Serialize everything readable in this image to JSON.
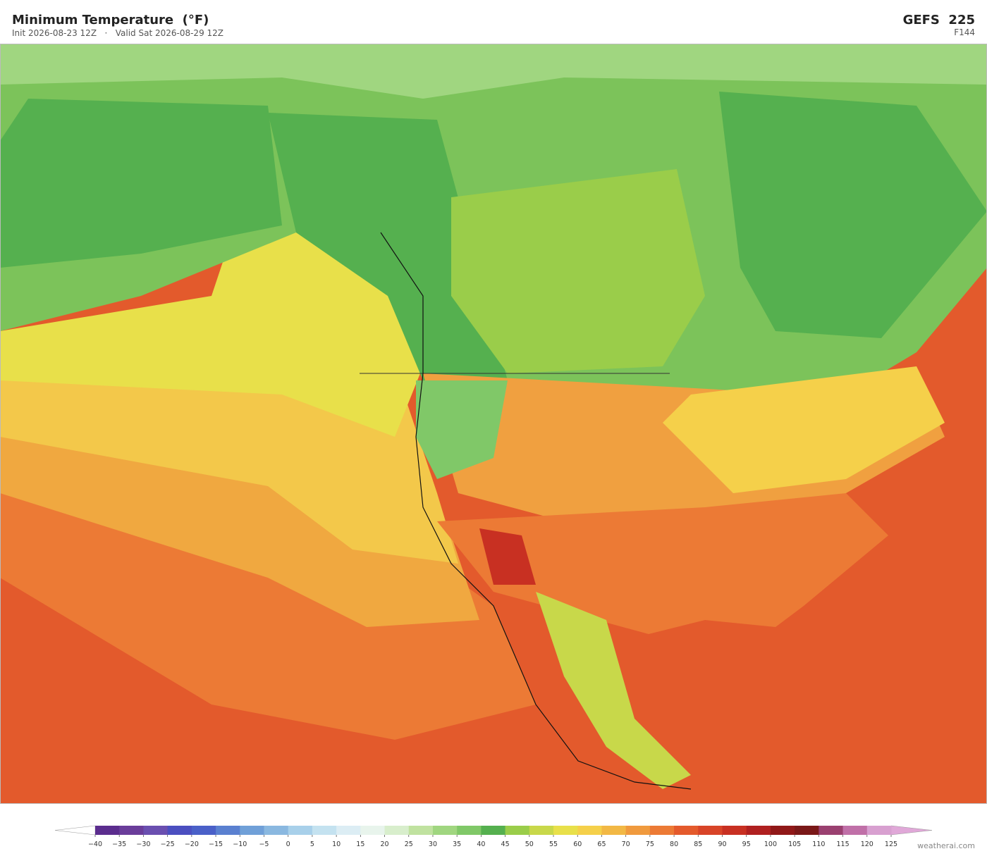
{
  "header": {
    "title": "Minimum Temperature  (°F)",
    "subtitle": "Init 2026-08-23 12Z   ·   Valid Sat 2026-08-29 12Z",
    "model": "GEFS  225",
    "forecast_hour": "F144"
  },
  "colorbar": {
    "ticks": [
      {
        "value": -40,
        "label": "−40"
      },
      {
        "value": -35,
        "label": "−35"
      },
      {
        "value": -30,
        "label": "−30"
      },
      {
        "value": -25,
        "label": "−25"
      },
      {
        "value": -20,
        "label": "−20"
      },
      {
        "value": -15,
        "label": "−15"
      },
      {
        "value": -10,
        "label": "−10"
      },
      {
        "value": -5,
        "label": "−5"
      },
      0,
      5,
      10,
      15,
      20,
      25,
      30,
      35,
      40,
      45,
      50,
      55,
      60,
      65,
      70,
      75,
      80,
      85,
      90,
      95,
      100,
      105,
      110,
      115,
      120,
      125
    ],
    "colors": [
      "#5b2d8e",
      "#6a3d9a",
      "#6a4fb0",
      "#4b4fc0",
      "#4a60c8",
      "#5a80d0",
      "#70a0d8",
      "#8ab8e0",
      "#a8d0ea",
      "#c4e2f0",
      "#dcedf4",
      "#e8f4ec",
      "#d8eecc",
      "#c0e2a0",
      "#a0d680",
      "#80c868",
      "#55b04f",
      "#9acd4a",
      "#c8d84a",
      "#e8e04a",
      "#f5d04a",
      "#f2b845",
      "#f09a3e",
      "#ec7a35",
      "#e45a2c",
      "#d84428",
      "#c83022",
      "#b02020",
      "#901818",
      "#7a1818",
      "#9a4070",
      "#c070a8",
      "#d8a0d0"
    ],
    "under_color": "#ffffff",
    "over_color": "#e0a8d8"
  },
  "watermark": "weatherai.com"
}
